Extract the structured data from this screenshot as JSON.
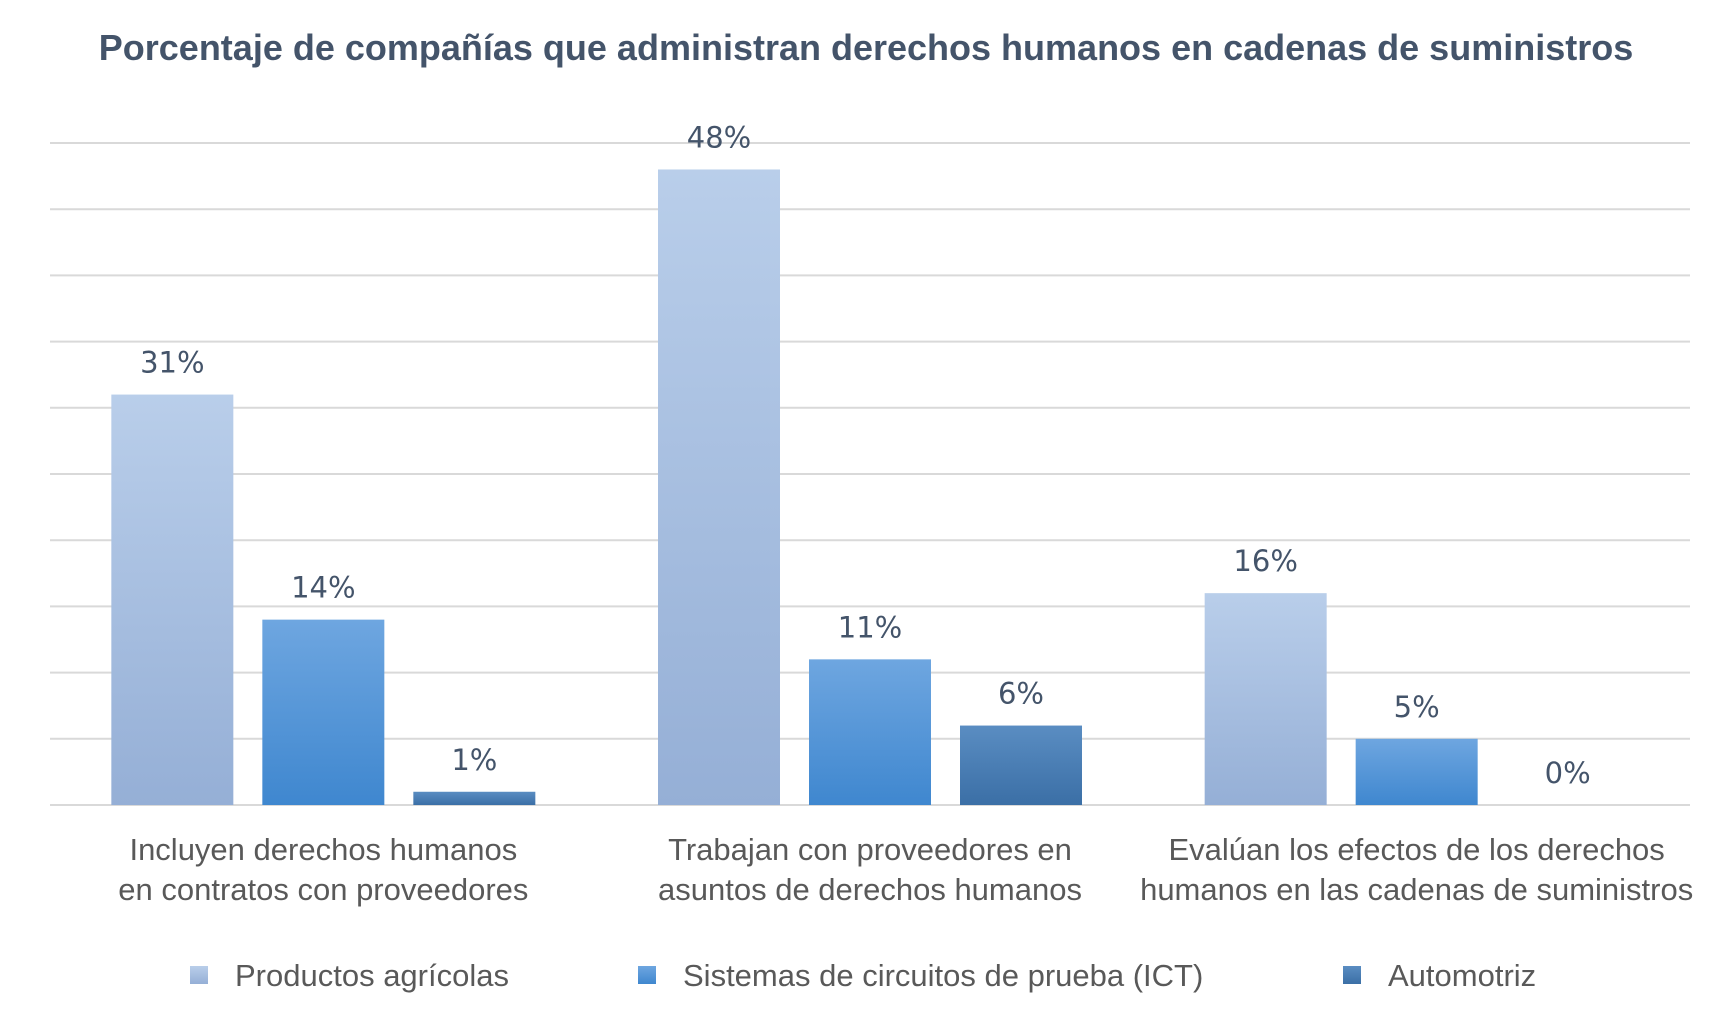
{
  "chart_data": {
    "type": "bar",
    "title": "Porcentaje de compañías que administran derechos humanos en cadenas de suministros",
    "categories": [
      [
        "Incluyen derechos humanos",
        "en contratos con proveedores"
      ],
      [
        "Trabajan con proveedores en",
        "asuntos de derechos humanos"
      ],
      [
        "Evalúan los efectos de los derechos",
        "humanos en las cadenas de suministros"
      ]
    ],
    "series": [
      {
        "name": "Productos agrícolas",
        "values": [
          31,
          48,
          16
        ],
        "labels": [
          "31%",
          "48%",
          "16%"
        ],
        "color_top": "#B9CEEA",
        "color_bottom": "#95AFD6"
      },
      {
        "name": "Sistemas de circuitos de prueba (ICT)",
        "values": [
          14,
          11,
          5
        ],
        "labels": [
          "14%",
          "11%",
          "5%"
        ],
        "color_top": "#6EA6E0",
        "color_bottom": "#3F87CF"
      },
      {
        "name": "Automotriz",
        "values": [
          1,
          6,
          0
        ],
        "labels": [
          "1%",
          "6%",
          "0%"
        ],
        "color_top": "#5A8DC2",
        "color_bottom": "#3B6FA6"
      }
    ],
    "ylim": [
      0,
      50
    ],
    "grid": true,
    "legend_position": "bottom"
  }
}
